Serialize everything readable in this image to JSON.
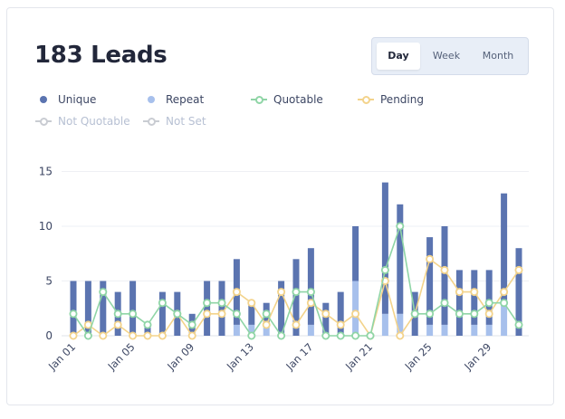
{
  "header": {
    "title": "183 Leads"
  },
  "range_tabs": [
    {
      "label": "Day",
      "active": true
    },
    {
      "label": "Week",
      "active": false
    },
    {
      "label": "Month",
      "active": false
    }
  ],
  "legend": [
    {
      "label": "Unique",
      "color": "#5b74b0",
      "style": "dot",
      "enabled": true
    },
    {
      "label": "Repeat",
      "color": "#a7c0ec",
      "style": "dot",
      "enabled": true
    },
    {
      "label": "Quotable",
      "color": "#8fd5a6",
      "style": "line",
      "enabled": true
    },
    {
      "label": "Pending",
      "color": "#f3d38b",
      "style": "line",
      "enabled": true
    },
    {
      "label": "Not Quotable",
      "color": "#c9ccd2",
      "style": "line",
      "enabled": false
    },
    {
      "label": "Not Set",
      "color": "#c9ccd2",
      "style": "line",
      "enabled": false
    }
  ],
  "chart_data": {
    "type": "bar",
    "stacked": true,
    "grid": true,
    "ylim": [
      0,
      15
    ],
    "yticks": [
      0,
      5,
      10,
      15
    ],
    "categories": [
      "Jan 01",
      "Jan 02",
      "Jan 03",
      "Jan 04",
      "Jan 05",
      "Jan 06",
      "Jan 07",
      "Jan 08",
      "Jan 09",
      "Jan 10",
      "Jan 11",
      "Jan 12",
      "Jan 13",
      "Jan 14",
      "Jan 15",
      "Jan 16",
      "Jan 17",
      "Jan 18",
      "Jan 19",
      "Jan 20",
      "Jan 21",
      "Jan 22",
      "Jan 23",
      "Jan 24",
      "Jan 25",
      "Jan 26",
      "Jan 27",
      "Jan 28",
      "Jan 29",
      "Jan 30",
      "Jan 31"
    ],
    "xtick_labels": [
      "Jan 01",
      "Jan 05",
      "Jan 09",
      "Jan 13",
      "Jan 17",
      "Jan 21",
      "Jan 25",
      "Jan 29"
    ],
    "series": [
      {
        "name": "Repeat",
        "kind": "bar",
        "color": "#a7c0ec",
        "values": [
          0,
          0,
          0,
          0,
          0,
          0,
          0,
          0,
          0,
          0,
          0,
          1,
          1,
          1,
          0,
          0,
          1,
          0,
          0,
          5,
          0,
          2,
          2,
          0,
          1,
          1,
          0,
          1,
          1,
          3,
          0
        ]
      },
      {
        "name": "Unique",
        "kind": "bar",
        "color": "#5b74b0",
        "values": [
          5,
          5,
          5,
          4,
          5,
          1,
          4,
          4,
          2,
          5,
          5,
          6,
          2,
          2,
          5,
          7,
          7,
          3,
          4,
          5,
          0,
          12,
          10,
          4,
          8,
          9,
          6,
          5,
          5,
          10,
          8
        ]
      },
      {
        "name": "Quotable",
        "kind": "line",
        "color": "#8fd5a6",
        "values": [
          2,
          0,
          4,
          2,
          2,
          1,
          3,
          2,
          1,
          3,
          3,
          2,
          0,
          2,
          0,
          4,
          4,
          0,
          0,
          0,
          0,
          6,
          10,
          2,
          2,
          3,
          2,
          2,
          3,
          3,
          1
        ]
      },
      {
        "name": "Pending",
        "kind": "line",
        "color": "#f3d38b",
        "values": [
          0,
          1,
          0,
          1,
          0,
          0,
          0,
          2,
          0,
          2,
          2,
          4,
          3,
          1,
          4,
          1,
          3,
          2,
          1,
          2,
          0,
          5,
          0,
          2,
          7,
          6,
          4,
          4,
          2,
          4,
          6
        ]
      }
    ]
  }
}
